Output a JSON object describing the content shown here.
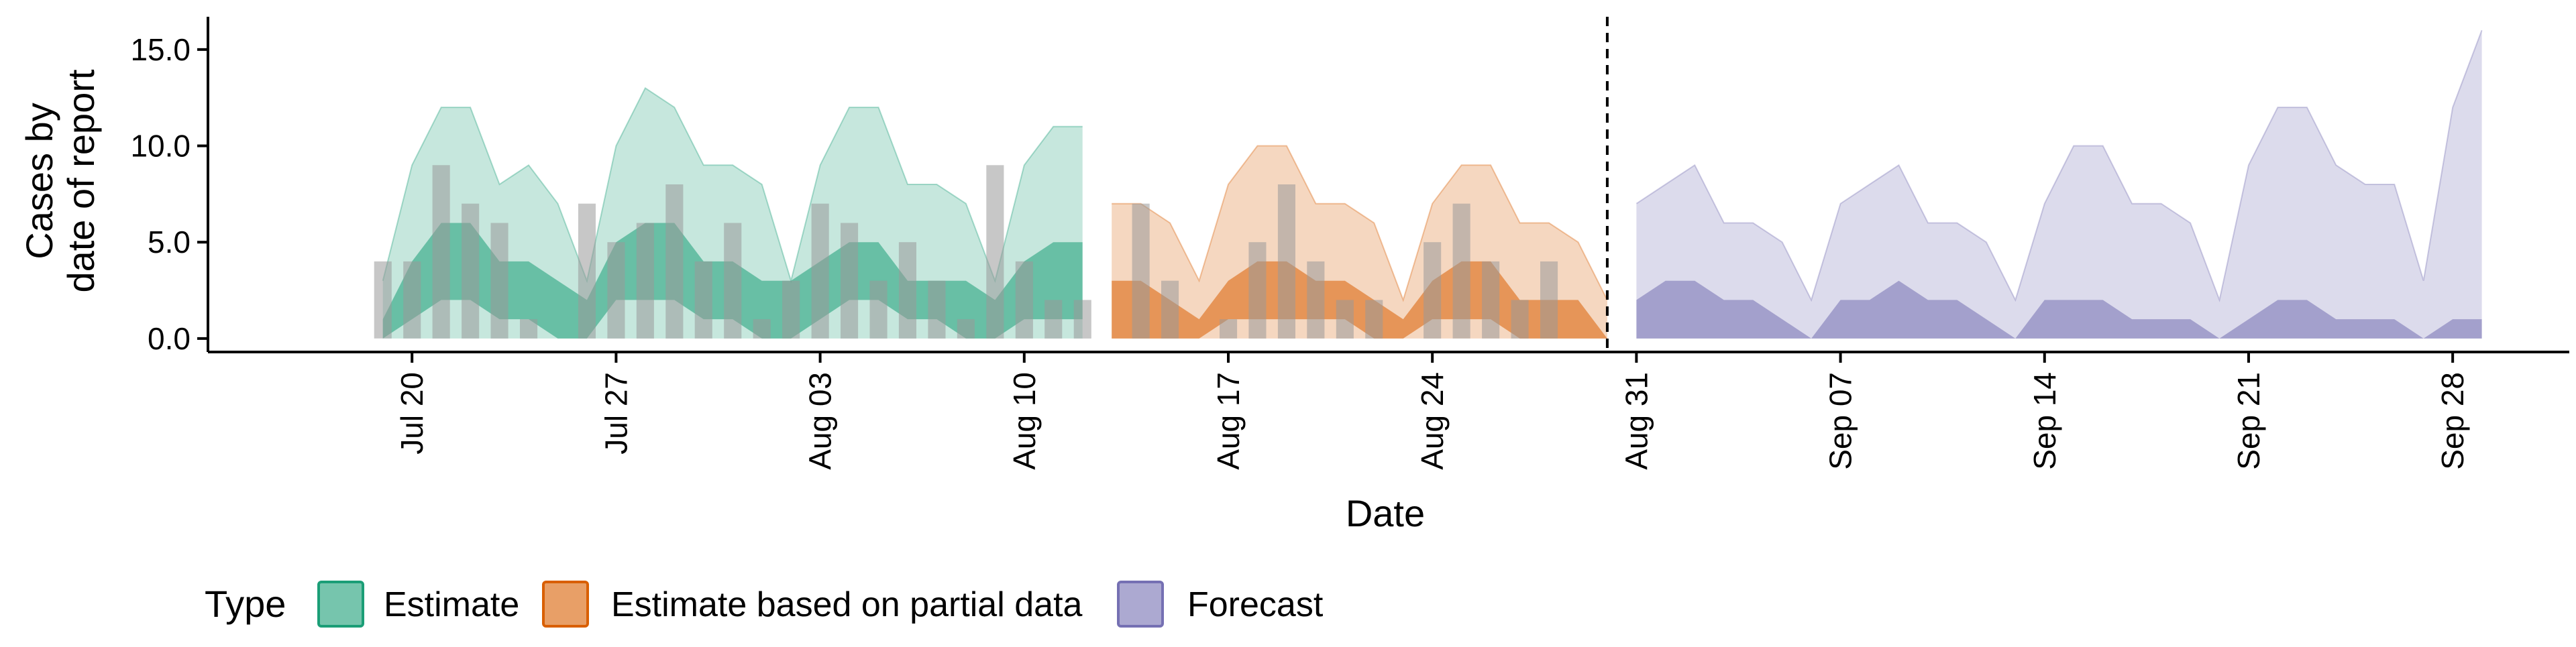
{
  "chart_data": {
    "type": "area",
    "title": "",
    "xlabel": "Date",
    "ylabel_line1": "Cases by",
    "ylabel_line2": "date of report",
    "x_tick_labels": [
      "Jul 20",
      "Jul 27",
      "Aug 03",
      "Aug 10",
      "Aug 17",
      "Aug 24",
      "Aug 31",
      "Sep 07",
      "Sep 14",
      "Sep 21",
      "Sep 28"
    ],
    "x_ticks": [
      "2020-07-20",
      "2020-07-27",
      "2020-08-03",
      "2020-08-10",
      "2020-08-17",
      "2020-08-24",
      "2020-08-31",
      "2020-09-07",
      "2020-09-14",
      "2020-09-21",
      "2020-09-28"
    ],
    "y_ticks": [
      0,
      5,
      10,
      15
    ],
    "y_tick_labels": [
      "0.0",
      "5.0",
      "10.0",
      "15.0"
    ],
    "xlim": [
      "2020-07-13",
      "2020-10-02"
    ],
    "ylim": [
      -0.7,
      16.7
    ],
    "forecast_boundary": "2020-08-30",
    "legend": {
      "title": "Type",
      "position": "bottom",
      "entries": [
        {
          "label": "Estimate",
          "color": "#1b9e77"
        },
        {
          "label": "Estimate based on partial data",
          "color": "#d95f02"
        },
        {
          "label": "Forecast",
          "color": "#7570b3"
        }
      ]
    },
    "observed_cases": {
      "color": "#999999",
      "dates": [
        "2020-07-19",
        "2020-07-20",
        "2020-07-21",
        "2020-07-22",
        "2020-07-23",
        "2020-07-24",
        "2020-07-25",
        "2020-07-26",
        "2020-07-27",
        "2020-07-28",
        "2020-07-29",
        "2020-07-30",
        "2020-07-31",
        "2020-08-01",
        "2020-08-02",
        "2020-08-03",
        "2020-08-04",
        "2020-08-05",
        "2020-08-06",
        "2020-08-07",
        "2020-08-08",
        "2020-08-09",
        "2020-08-10",
        "2020-08-11",
        "2020-08-12",
        "2020-08-13",
        "2020-08-14",
        "2020-08-15",
        "2020-08-16",
        "2020-08-17",
        "2020-08-18",
        "2020-08-19",
        "2020-08-20",
        "2020-08-21",
        "2020-08-22",
        "2020-08-23",
        "2020-08-24",
        "2020-08-25",
        "2020-08-26",
        "2020-08-27",
        "2020-08-28",
        "2020-08-29"
      ],
      "values": [
        4,
        4,
        9,
        7,
        6,
        1,
        0,
        7,
        5,
        6,
        8,
        4,
        6,
        1,
        3,
        7,
        6,
        3,
        5,
        3,
        1,
        9,
        4,
        2,
        2,
        0,
        7,
        3,
        0,
        1,
        5,
        8,
        4,
        2,
        2,
        0,
        5,
        7,
        4,
        2,
        4,
        0
      ]
    },
    "series": [
      {
        "name": "Estimate",
        "color": "#1b9e77",
        "dates": [
          "2020-07-19",
          "2020-07-20",
          "2020-07-21",
          "2020-07-22",
          "2020-07-23",
          "2020-07-24",
          "2020-07-25",
          "2020-07-26",
          "2020-07-27",
          "2020-07-28",
          "2020-07-29",
          "2020-07-30",
          "2020-07-31",
          "2020-08-01",
          "2020-08-02",
          "2020-08-03",
          "2020-08-04",
          "2020-08-05",
          "2020-08-06",
          "2020-08-07",
          "2020-08-08",
          "2020-08-09",
          "2020-08-10",
          "2020-08-11",
          "2020-08-12"
        ],
        "lower_outer": [
          0,
          0,
          0,
          0,
          0,
          0,
          0,
          0,
          0,
          0,
          0,
          0,
          0,
          0,
          0,
          0,
          0,
          0,
          0,
          0,
          0,
          0,
          0,
          0,
          0
        ],
        "lower_inner": [
          0,
          1,
          2,
          2,
          1,
          1,
          0,
          0,
          2,
          2,
          2,
          1,
          1,
          0,
          0,
          1,
          2,
          2,
          1,
          1,
          0,
          0,
          1,
          1,
          1
        ],
        "upper_inner": [
          1,
          4,
          6,
          6,
          4,
          4,
          3,
          2,
          5,
          6,
          6,
          4,
          4,
          3,
          3,
          4,
          5,
          5,
          3,
          3,
          3,
          2,
          4,
          5,
          5
        ],
        "upper_outer": [
          3,
          9,
          12,
          12,
          8,
          9,
          7,
          3,
          10,
          13,
          12,
          9,
          9,
          8,
          3,
          9,
          12,
          12,
          8,
          8,
          7,
          3,
          9,
          11,
          11
        ]
      },
      {
        "name": "Estimate based on partial data",
        "color": "#d95f02",
        "dates": [
          "2020-08-13",
          "2020-08-14",
          "2020-08-15",
          "2020-08-16",
          "2020-08-17",
          "2020-08-18",
          "2020-08-19",
          "2020-08-20",
          "2020-08-21",
          "2020-08-22",
          "2020-08-23",
          "2020-08-24",
          "2020-08-25",
          "2020-08-26",
          "2020-08-27",
          "2020-08-28",
          "2020-08-29",
          "2020-08-30"
        ],
        "lower_outer": [
          0,
          0,
          0,
          0,
          0,
          0,
          0,
          0,
          0,
          0,
          0,
          0,
          0,
          0,
          0,
          0,
          0,
          0
        ],
        "lower_inner": [
          0,
          0,
          0,
          0,
          1,
          1,
          1,
          1,
          1,
          0,
          0,
          1,
          1,
          1,
          0,
          0,
          0,
          0
        ],
        "upper_inner": [
          3,
          3,
          2,
          1,
          3,
          4,
          4,
          3,
          3,
          2,
          1,
          3,
          4,
          4,
          2,
          2,
          2,
          0
        ],
        "upper_outer": [
          7,
          7,
          6,
          3,
          8,
          10,
          10,
          7,
          7,
          6,
          2,
          7,
          9,
          9,
          6,
          6,
          5,
          2
        ]
      },
      {
        "name": "Forecast",
        "color": "#7570b3",
        "dates": [
          "2020-08-31",
          "2020-09-01",
          "2020-09-02",
          "2020-09-03",
          "2020-09-04",
          "2020-09-05",
          "2020-09-06",
          "2020-09-07",
          "2020-09-08",
          "2020-09-09",
          "2020-09-10",
          "2020-09-11",
          "2020-09-12",
          "2020-09-13",
          "2020-09-14",
          "2020-09-15",
          "2020-09-16",
          "2020-09-17",
          "2020-09-18",
          "2020-09-19",
          "2020-09-20",
          "2020-09-21",
          "2020-09-22",
          "2020-09-23",
          "2020-09-24",
          "2020-09-25",
          "2020-09-26",
          "2020-09-27",
          "2020-09-28",
          "2020-09-29"
        ],
        "lower_outer": [
          0,
          0,
          0,
          0,
          0,
          0,
          0,
          0,
          0,
          0,
          0,
          0,
          0,
          0,
          0,
          0,
          0,
          0,
          0,
          0,
          0,
          0,
          0,
          0,
          0,
          0,
          0,
          0,
          0,
          0
        ],
        "lower_inner": [
          0,
          0,
          0,
          0,
          0,
          0,
          0,
          0,
          0,
          0,
          0,
          0,
          0,
          0,
          0,
          0,
          0,
          0,
          0,
          0,
          0,
          0,
          0,
          0,
          0,
          0,
          0,
          0,
          0,
          0
        ],
        "upper_inner": [
          2,
          3,
          3,
          2,
          2,
          1,
          0,
          2,
          2,
          3,
          2,
          2,
          1,
          0,
          2,
          2,
          2,
          1,
          1,
          1,
          0,
          1,
          2,
          2,
          1,
          1,
          1,
          0,
          1,
          1
        ],
        "upper_outer": [
          7,
          8,
          9,
          6,
          6,
          5,
          2,
          7,
          8,
          9,
          6,
          6,
          5,
          2,
          7,
          10,
          10,
          7,
          7,
          6,
          2,
          9,
          12,
          12,
          9,
          8,
          8,
          3,
          12,
          16
        ]
      }
    ]
  }
}
